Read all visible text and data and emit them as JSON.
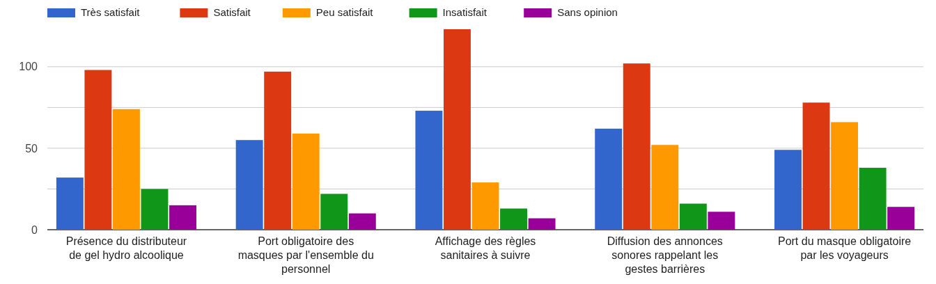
{
  "chart_data": {
    "type": "bar",
    "categories": [
      "Présence du distributeur de gel hydro alcoolique",
      "Port obligatoire des masques par l'ensemble du personnel",
      "Affichage des règles sanitaires à suivre",
      "Diffusion des annonces sonores rappelant les gestes barrières",
      "Port du masque obligatoire par les voyageurs"
    ],
    "series": [
      {
        "name": "Très satisfait",
        "color": "#3366cc",
        "values": [
          32,
          55,
          73,
          62,
          49
        ]
      },
      {
        "name": "Satisfait",
        "color": "#dc3912",
        "values": [
          98,
          97,
          123,
          102,
          78
        ]
      },
      {
        "name": "Peu satisfait",
        "color": "#ff9900",
        "values": [
          74,
          59,
          29,
          52,
          66
        ]
      },
      {
        "name": "Insatisfait",
        "color": "#109618",
        "values": [
          25,
          22,
          13,
          16,
          38
        ]
      },
      {
        "name": "Sans opinion",
        "color": "#990099",
        "values": [
          15,
          10,
          7,
          11,
          14
        ]
      }
    ],
    "ylim": [
      0,
      123
    ],
    "yticks": [
      0,
      {
        "value": 25,
        "label": null
      },
      50,
      {
        "value": 75,
        "label": null
      },
      100
    ],
    "grid": "y",
    "legend": "top left"
  }
}
